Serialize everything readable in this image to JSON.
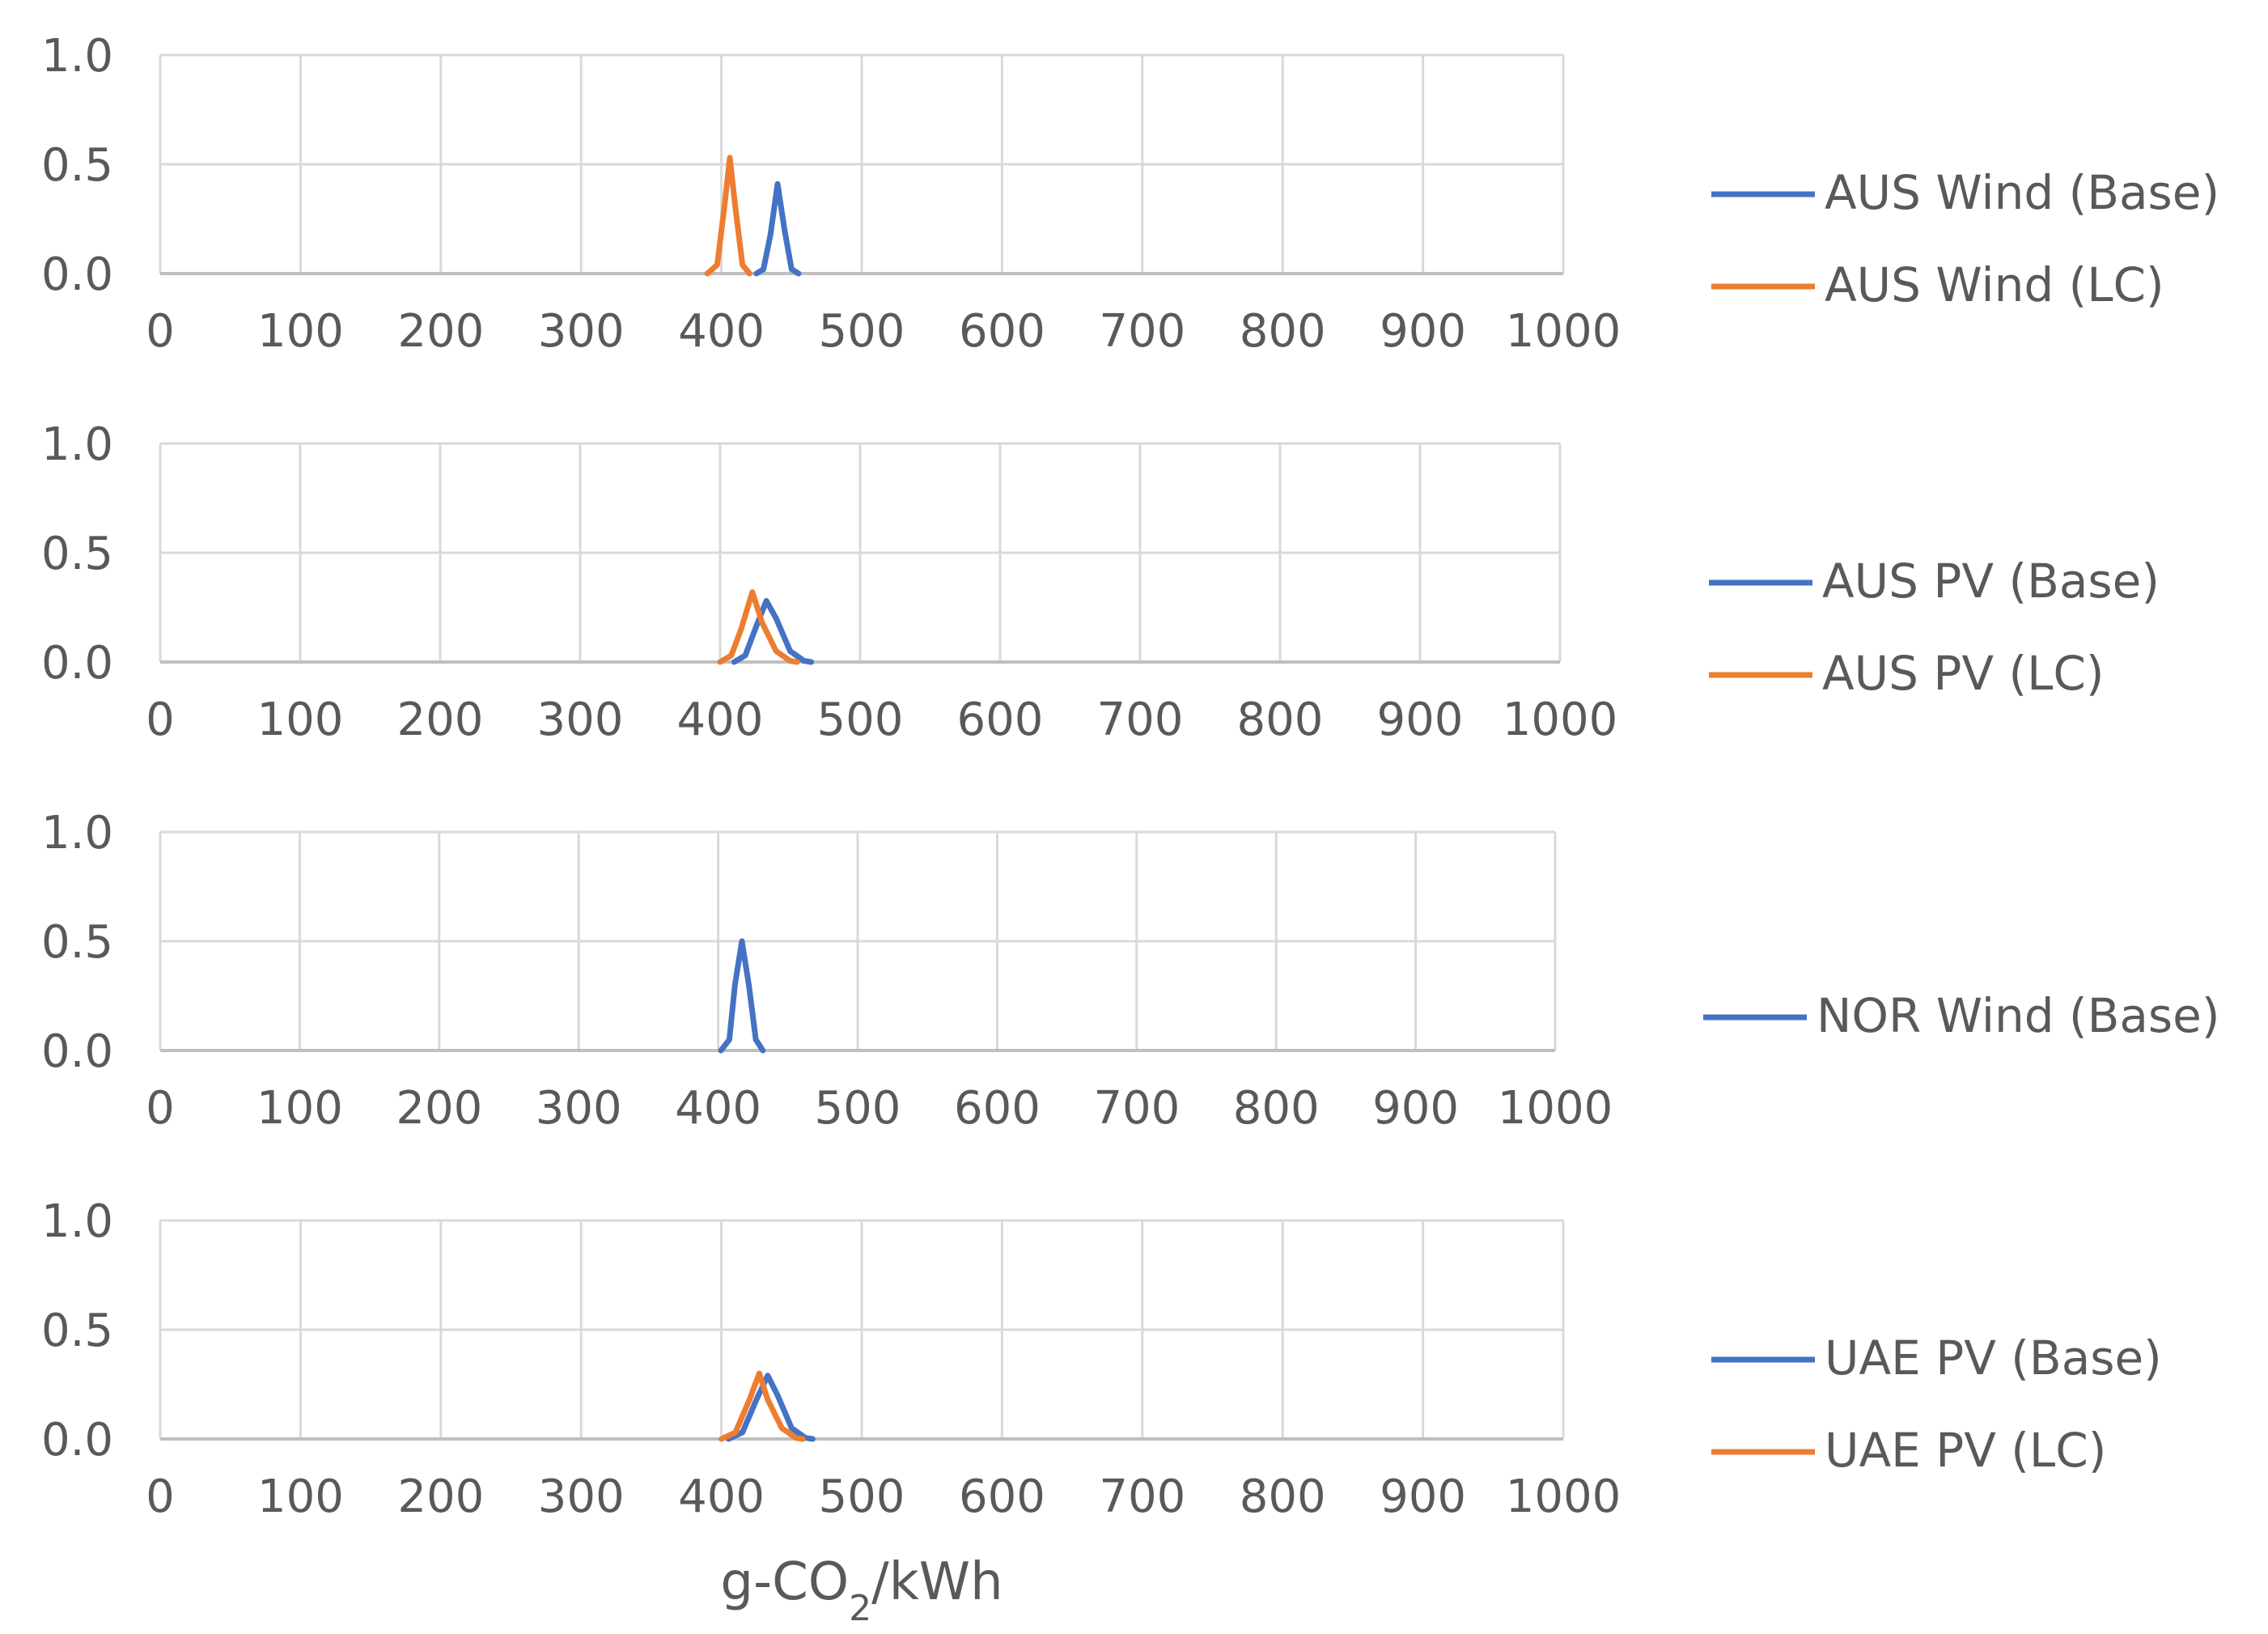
{
  "chart_data": [
    {
      "type": "line",
      "xlim": [
        0,
        1000
      ],
      "ylim": [
        0,
        1
      ],
      "x_ticks": [
        "0",
        "100",
        "200",
        "300",
        "400",
        "500",
        "600",
        "700",
        "800",
        "900",
        "1000"
      ],
      "y_ticks": [
        "0.0",
        "0.5",
        "1.0"
      ],
      "grid": true,
      "legend_position": "right",
      "series": [
        {
          "name": "AUS Wind (Base)",
          "color": "#4472C4",
          "x": [
            425,
            430,
            435,
            440,
            445,
            450,
            455
          ],
          "y": [
            0,
            0.02,
            0.18,
            0.41,
            0.2,
            0.02,
            0
          ]
        },
        {
          "name": "AUS Wind (LC)",
          "color": "#ED7D31",
          "x": [
            390,
            397,
            402,
            406,
            410,
            415,
            420
          ],
          "y": [
            0,
            0.04,
            0.3,
            0.53,
            0.3,
            0.04,
            0
          ]
        }
      ]
    },
    {
      "type": "line",
      "xlim": [
        0,
        1000
      ],
      "ylim": [
        0,
        1
      ],
      "x_ticks": [
        "0",
        "100",
        "200",
        "300",
        "400",
        "500",
        "600",
        "700",
        "800",
        "900",
        "1000"
      ],
      "y_ticks": [
        "0.0",
        "0.5",
        "1.0"
      ],
      "grid": true,
      "legend_position": "right",
      "series": [
        {
          "name": "AUS PV (Base)",
          "color": "#4472C4",
          "x": [
            410,
            418,
            425,
            433,
            440,
            450,
            460,
            465
          ],
          "y": [
            0,
            0.03,
            0.15,
            0.28,
            0.2,
            0.05,
            0.005,
            0
          ]
        },
        {
          "name": "AUS PV (LC)",
          "color": "#ED7D31",
          "x": [
            400,
            408,
            415,
            423,
            430,
            440,
            450,
            455
          ],
          "y": [
            0,
            0.03,
            0.15,
            0.32,
            0.18,
            0.05,
            0.005,
            0
          ]
        }
      ]
    },
    {
      "type": "line",
      "xlim": [
        0,
        1000
      ],
      "ylim": [
        0,
        1
      ],
      "x_ticks": [
        "0",
        "100",
        "200",
        "300",
        "400",
        "500",
        "600",
        "700",
        "800",
        "900",
        "1000"
      ],
      "y_ticks": [
        "0.0",
        "0.5",
        "1.0"
      ],
      "grid": true,
      "legend_position": "right",
      "series": [
        {
          "name": "NOR Wind (Base)",
          "color": "#4472C4",
          "x": [
            402,
            408,
            412,
            417,
            422,
            427,
            432
          ],
          "y": [
            0,
            0.05,
            0.3,
            0.5,
            0.3,
            0.05,
            0
          ]
        }
      ]
    },
    {
      "type": "line",
      "xlim": [
        0,
        1000
      ],
      "ylim": [
        0,
        1
      ],
      "x_ticks": [
        "0",
        "100",
        "200",
        "300",
        "400",
        "500",
        "600",
        "700",
        "800",
        "900",
        "1000"
      ],
      "y_ticks": [
        "0.0",
        "0.5",
        "1.0"
      ],
      "grid": true,
      "legend_position": "right",
      "xlabel": "g-CO2/kWh",
      "series": [
        {
          "name": "UAE PV (Base)",
          "color": "#4472C4",
          "x": [
            405,
            415,
            425,
            433,
            440,
            450,
            460,
            465
          ],
          "y": [
            0,
            0.03,
            0.18,
            0.29,
            0.2,
            0.05,
            0.005,
            0
          ]
        },
        {
          "name": "UAE PV (LC)",
          "color": "#ED7D31",
          "x": [
            400,
            410,
            420,
            427,
            433,
            443,
            453,
            458
          ],
          "y": [
            0,
            0.03,
            0.18,
            0.3,
            0.18,
            0.05,
            0.005,
            0
          ]
        }
      ]
    }
  ],
  "xlabel_main": "g-CO",
  "xlabel_sub": "2",
  "xlabel_suffix": "/kWh"
}
